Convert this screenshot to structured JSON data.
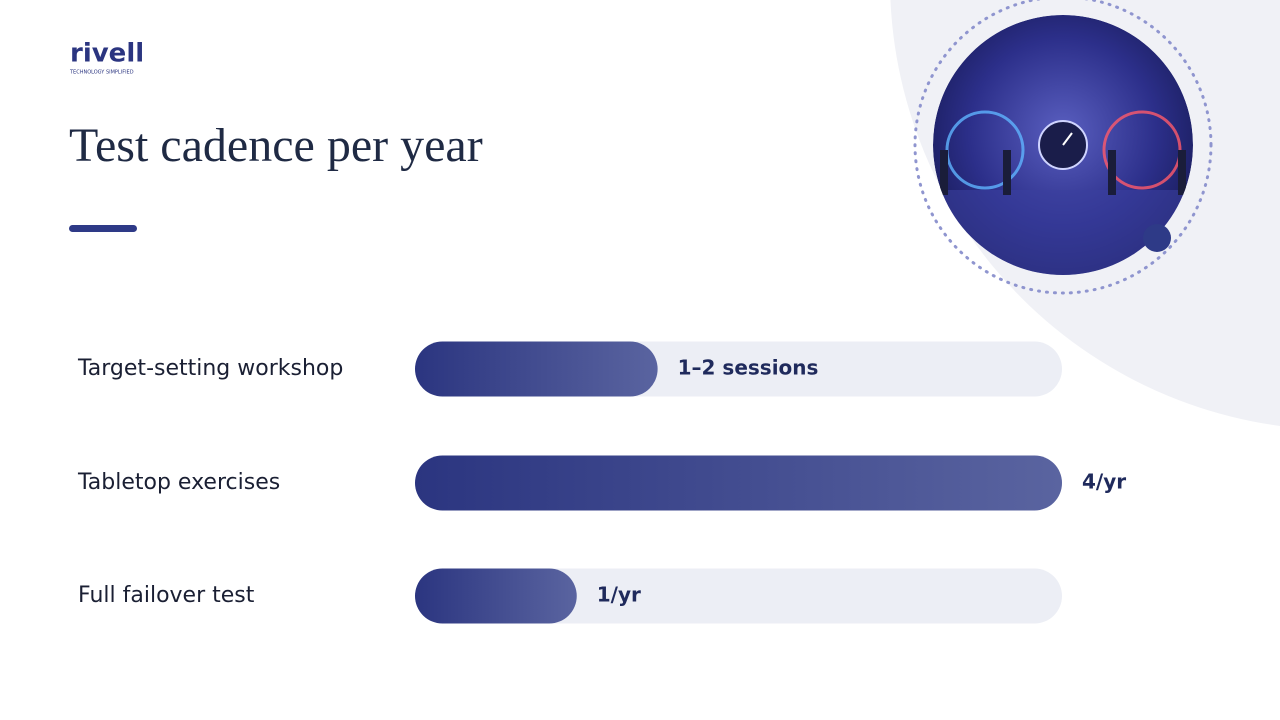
{
  "logo": {
    "name": "rivell",
    "tagline": "TECHNOLOGY SIMPLIFIED"
  },
  "chart_data": {
    "type": "bar",
    "orientation": "horizontal",
    "title": "Test cadence per year",
    "categories": [
      "Target-setting workshop",
      "Tabletop exercises",
      "Full failover test"
    ],
    "values": [
      1.5,
      4,
      1
    ],
    "value_labels": [
      "1–2 sessions",
      "4/yr",
      "1/yr"
    ],
    "xlim": [
      0,
      4
    ],
    "color": "#2b3580"
  }
}
